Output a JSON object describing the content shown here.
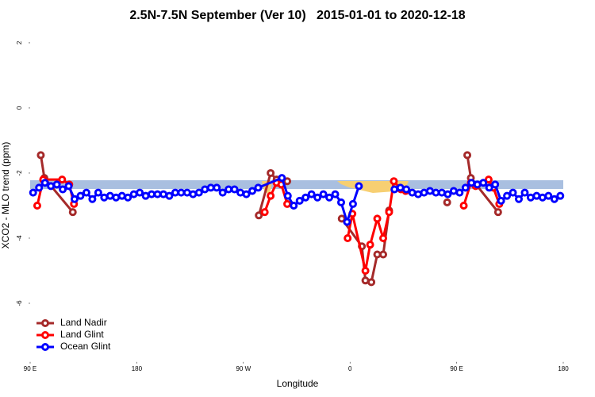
{
  "chart_data": {
    "type": "line",
    "title": "2.5N-7.5N September (Ver 10)   2015-01-01 to 2020-12-18",
    "xlabel": "Longitude",
    "ylabel": "XCO2 - MLO trend (ppm)",
    "xlim": [
      90,
      540
    ],
    "xticks": [
      {
        "value": 90,
        "label": "90 E"
      },
      {
        "value": 180,
        "label": "180"
      },
      {
        "value": 270,
        "label": "90 W"
      },
      {
        "value": 360,
        "label": "0"
      },
      {
        "value": 450,
        "label": "90 E"
      },
      {
        "value": 540,
        "label": "180"
      }
    ],
    "ylim": [
      -7.8,
      2.35
    ],
    "yticks": [
      -6,
      -4,
      -2,
      0,
      2
    ],
    "legend": "bottom-left",
    "series": [
      {
        "name": "Land Nadir",
        "color": "#a52a2a",
        "x": [
          99,
          102,
          126,
          null,
          283,
          293,
          298,
          307,
          null,
          353,
          370,
          373,
          378,
          383,
          388,
          393,
          null,
          442,
          null,
          459,
          462,
          485
        ],
        "values": [
          -1.45,
          -2.15,
          -3.2,
          null,
          -3.3,
          -2.0,
          -2.2,
          -2.25,
          null,
          -3.4,
          -4.25,
          -5.3,
          -5.35,
          -4.5,
          -4.5,
          -3.15,
          null,
          -2.9,
          null,
          -1.45,
          -2.15,
          -3.2
        ]
      },
      {
        "name": "Land Glint",
        "color": "#ff0000",
        "x": [
          96,
          101,
          117,
          123,
          127,
          null,
          288,
          293,
          298,
          302,
          307,
          null,
          358,
          362,
          373,
          377,
          383,
          388,
          393,
          397,
          403,
          407,
          null,
          456,
          462,
          466,
          477,
          481,
          486
        ],
        "values": [
          -3.0,
          -2.2,
          -2.2,
          -2.35,
          -2.95,
          null,
          -3.2,
          -2.7,
          -2.3,
          -2.35,
          -2.95,
          null,
          -4.0,
          -3.25,
          -5.0,
          -4.2,
          -3.4,
          -4.0,
          -3.2,
          -2.25,
          -2.5,
          -2.55,
          null,
          -3.0,
          -2.3,
          -2.4,
          -2.2,
          -2.45,
          -2.95
        ]
      },
      {
        "name": "Ocean Glint",
        "color": "#0000ff",
        "x": [
          92.5,
          97.5,
          102.5,
          107.5,
          112.5,
          117.5,
          122.5,
          127.5,
          132.5,
          137.5,
          142.5,
          147.5,
          152.5,
          157.5,
          162.5,
          167.5,
          172.5,
          177.5,
          182.5,
          187.5,
          192.5,
          197.5,
          202.5,
          207.5,
          212.5,
          217.5,
          222.5,
          227.5,
          232.5,
          237.5,
          242.5,
          247.5,
          252.5,
          257.5,
          262.5,
          267.5,
          272.5,
          277.5,
          282.5,
          302.5,
          307.5,
          312.5,
          317.5,
          322.5,
          327.5,
          332.5,
          337.5,
          342.5,
          347.5,
          352.5,
          357.5,
          362.5,
          367.5,
          null,
          397.5,
          402.5,
          407.5,
          412.5,
          417.5,
          422.5,
          427.5,
          432.5,
          437.5,
          442.5,
          447.5,
          452.5,
          457.5,
          462.5,
          467.5,
          472.5,
          477.5,
          482.5,
          487.5,
          492.5,
          497.5,
          502.5,
          507.5,
          512.5,
          517.5,
          522.5,
          527.5,
          532.5,
          537.5
        ],
        "values": [
          -2.6,
          -2.45,
          -2.3,
          -2.4,
          -2.35,
          -2.5,
          -2.4,
          -2.8,
          -2.7,
          -2.6,
          -2.8,
          -2.6,
          -2.75,
          -2.7,
          -2.75,
          -2.7,
          -2.75,
          -2.65,
          -2.6,
          -2.7,
          -2.65,
          -2.65,
          -2.65,
          -2.7,
          -2.6,
          -2.6,
          -2.6,
          -2.65,
          -2.6,
          -2.5,
          -2.45,
          -2.45,
          -2.6,
          -2.5,
          -2.5,
          -2.6,
          -2.65,
          -2.55,
          -2.45,
          -2.15,
          -2.7,
          -3.0,
          -2.85,
          -2.75,
          -2.65,
          -2.75,
          -2.65,
          -2.75,
          -2.65,
          -2.9,
          -3.5,
          -2.95,
          -2.4,
          null,
          -2.5,
          -2.45,
          -2.5,
          -2.6,
          -2.65,
          -2.6,
          -2.55,
          -2.6,
          -2.6,
          -2.65,
          -2.55,
          -2.6,
          -2.45,
          -2.3,
          -2.35,
          -2.3,
          -2.45,
          -2.35,
          -2.85,
          -2.7,
          -2.6,
          -2.8,
          -2.6,
          -2.75,
          -2.7,
          -2.75,
          -2.7,
          -2.8,
          -2.7
        ]
      }
    ]
  }
}
